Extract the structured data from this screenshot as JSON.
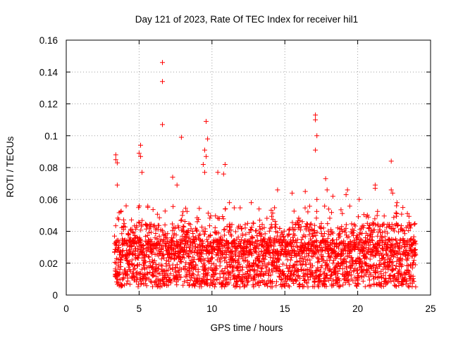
{
  "chart_data": {
    "type": "scatter",
    "title": "Day 121 of 2023, Rate Of TEC Index for receiver hil1",
    "xlabel": "GPS time / hours",
    "ylabel": "ROTI / TECUs",
    "xlim": [
      0,
      25
    ],
    "ylim": [
      0,
      0.16
    ],
    "xticks": [
      0,
      5,
      10,
      15,
      20,
      25
    ],
    "xtick_labels": [
      "0",
      "5",
      "10",
      "15",
      "20",
      "25"
    ],
    "yticks": [
      0,
      0.02,
      0.04,
      0.06,
      0.08,
      0.1,
      0.12,
      0.14,
      0.16
    ],
    "ytick_labels": [
      "0",
      "0.02",
      "0.04",
      "0.06",
      "0.08",
      "0.1",
      "0.12",
      "0.14",
      "0.16"
    ],
    "grid": true,
    "marker": "+",
    "color": "#ff0000",
    "data_range_x": [
      3.3,
      24.0
    ],
    "dense_band_y": [
      0.005,
      0.035
    ],
    "points": [
      [
        3.4,
        0.088
      ],
      [
        3.4,
        0.085
      ],
      [
        3.5,
        0.083
      ],
      [
        3.5,
        0.069
      ],
      [
        5.0,
        0.089
      ],
      [
        5.1,
        0.094
      ],
      [
        5.1,
        0.087
      ],
      [
        5.2,
        0.077
      ],
      [
        6.6,
        0.146
      ],
      [
        6.6,
        0.134
      ],
      [
        6.6,
        0.107
      ],
      [
        7.9,
        0.099
      ],
      [
        7.3,
        0.074
      ],
      [
        7.6,
        0.069
      ],
      [
        9.6,
        0.109
      ],
      [
        9.7,
        0.098
      ],
      [
        9.5,
        0.091
      ],
      [
        9.6,
        0.087
      ],
      [
        9.4,
        0.082
      ],
      [
        9.5,
        0.077
      ],
      [
        10.4,
        0.077
      ],
      [
        10.9,
        0.082
      ],
      [
        10.8,
        0.076
      ],
      [
        11.2,
        0.058
      ],
      [
        12.7,
        0.058
      ],
      [
        14.5,
        0.066
      ],
      [
        15.5,
        0.064
      ],
      [
        16.4,
        0.065
      ],
      [
        17.1,
        0.113
      ],
      [
        17.1,
        0.11
      ],
      [
        17.2,
        0.1
      ],
      [
        17.1,
        0.091
      ],
      [
        17.2,
        0.06
      ],
      [
        17.8,
        0.073
      ],
      [
        17.9,
        0.066
      ],
      [
        18.3,
        0.062
      ],
      [
        19.3,
        0.066
      ],
      [
        19.2,
        0.063
      ],
      [
        20.1,
        0.06
      ],
      [
        21.2,
        0.069
      ],
      [
        21.2,
        0.067
      ],
      [
        22.3,
        0.084
      ],
      [
        22.3,
        0.066
      ],
      [
        22.4,
        0.064
      ],
      [
        22.7,
        0.058
      ],
      [
        23.1,
        0.055
      ]
    ]
  }
}
